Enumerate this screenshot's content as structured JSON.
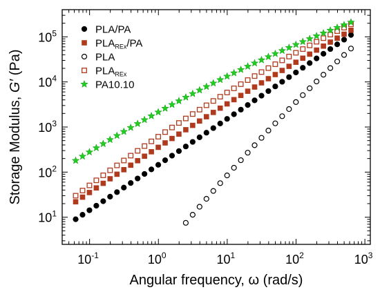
{
  "chart_data": {
    "type": "scatter",
    "xlabel": "Angular frequency, ω (rad/s)",
    "ylabel_main": "Storage Modulus, ",
    "ylabel_symbol": "G′",
    "ylabel_unit": " (Pa)",
    "x_scale": "log",
    "y_scale": "log",
    "xlim": [
      0.04,
      1200
    ],
    "ylim": [
      2.5,
      400000
    ],
    "x_ticks": [
      {
        "base": "10",
        "exp": "-1",
        "value": 0.1
      },
      {
        "base": "10",
        "exp": "0",
        "value": 1
      },
      {
        "base": "10",
        "exp": "1",
        "value": 10
      },
      {
        "base": "10",
        "exp": "2",
        "value": 100
      },
      {
        "base": "10",
        "exp": "3",
        "value": 1000
      }
    ],
    "y_ticks": [
      {
        "base": "10",
        "exp": "1",
        "value": 10
      },
      {
        "base": "10",
        "exp": "2",
        "value": 100
      },
      {
        "base": "10",
        "exp": "3",
        "value": 1000
      },
      {
        "base": "10",
        "exp": "4",
        "value": 10000
      },
      {
        "base": "10",
        "exp": "5",
        "value": 100000
      }
    ],
    "grid": false,
    "legend_position": "top-left",
    "series": [
      {
        "name": "PLA/PA",
        "name_parts": {
          "main": "PLA/PA",
          "sub": "",
          "tail": ""
        },
        "marker": "circle-filled",
        "color": "#000000",
        "x_start": 0.0628,
        "x_end": 628,
        "n_points": 41,
        "y_start": 9,
        "y_end": 110000,
        "slope_start": 1.0,
        "slope_end": 1.0
      },
      {
        "name": "PLA_REx/PA",
        "name_parts": {
          "main": "PLA",
          "sub": "REx",
          "tail": "/PA"
        },
        "marker": "square-filled",
        "color": "#b03a1e",
        "x_start": 0.0628,
        "x_end": 628,
        "n_points": 41,
        "y_start": 22,
        "y_end": 140000,
        "slope_start": 1.03,
        "slope_end": 0.9
      },
      {
        "name": "PLA",
        "name_parts": {
          "main": "PLA",
          "sub": "",
          "tail": ""
        },
        "marker": "circle-open",
        "color": "#000000",
        "x_start": 2.5,
        "x_end": 628,
        "n_points": 25,
        "y_start": 7.5,
        "y_end": 55000,
        "slope_start": 1.8,
        "slope_end": 1.45
      },
      {
        "name": "PLA_REx",
        "name_parts": {
          "main": "PLA",
          "sub": "REx",
          "tail": ""
        },
        "marker": "square-open",
        "color": "#b03a1e",
        "x_start": 0.0628,
        "x_end": 628,
        "n_points": 41,
        "y_start": 30,
        "y_end": 190000,
        "slope_start": 1.15,
        "slope_end": 0.75
      },
      {
        "name": "PA10.10",
        "name_parts": {
          "main": "PA10.10",
          "sub": "",
          "tail": ""
        },
        "marker": "star",
        "color": "#22cc22",
        "x_start": 0.0628,
        "x_end": 628,
        "n_points": 41,
        "y_start": 180,
        "y_end": 210000,
        "slope_start": 0.95,
        "slope_end": 0.55
      }
    ]
  }
}
